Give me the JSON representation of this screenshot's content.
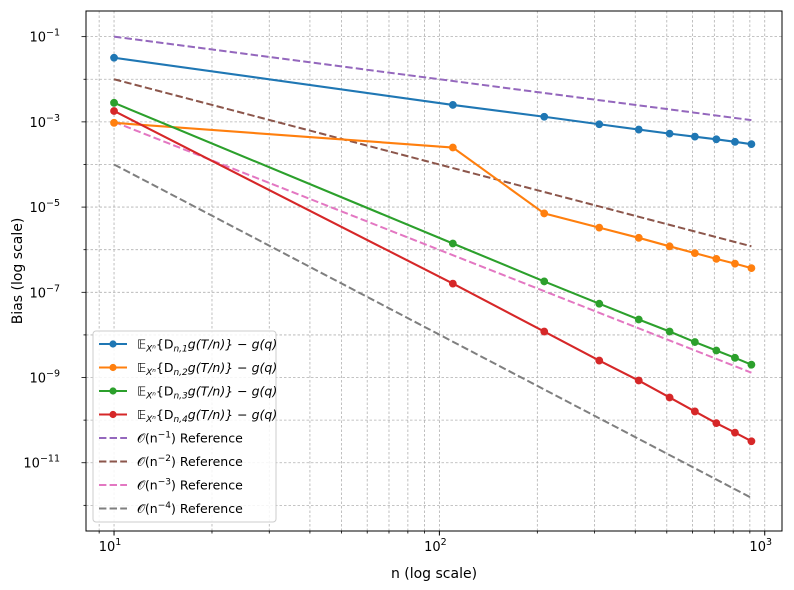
{
  "chart_data": {
    "type": "line",
    "title": "",
    "xlabel": "n (log scale)",
    "ylabel": "Bias (log scale)",
    "xscale": "log",
    "yscale": "log",
    "xlim": [
      8.2,
      1130
    ],
    "ylim": [
      2.5e-13,
      0.4
    ],
    "grid": true,
    "legend_position": "lower-left",
    "x_ticks": [
      {
        "value": 10,
        "label": "10",
        "exp": "1"
      },
      {
        "value": 100,
        "label": "10",
        "exp": "2"
      },
      {
        "value": 1000,
        "label": "10",
        "exp": "3"
      }
    ],
    "y_ticks": [
      {
        "value": 0.1,
        "label": "10",
        "exp": "−1"
      },
      {
        "value": 0.001,
        "label": "10",
        "exp": "−3"
      },
      {
        "value": 1e-05,
        "label": "10",
        "exp": "−5"
      },
      {
        "value": 1e-07,
        "label": "10",
        "exp": "−7"
      },
      {
        "value": 1e-09,
        "label": "10",
        "exp": "−9"
      },
      {
        "value": 1e-11,
        "label": "10",
        "exp": "−11"
      }
    ],
    "x": [
      10,
      110,
      210,
      310,
      410,
      510,
      610,
      710,
      810,
      910
    ],
    "series": [
      {
        "name": "𝔼_{X^n}{D_{n,1} g(T/n)} − g(q)",
        "label_pre": "𝔼",
        "label_sub": "Xⁿ",
        "label_mid": "{D",
        "label_sub2": "n,1",
        "label_post": "g(T/n)} − g(q)",
        "color": "#1f77b4",
        "style": "solid",
        "marker": true,
        "values": [
          0.032,
          0.0025,
          0.00132,
          0.00088,
          0.00066,
          0.00053,
          0.00045,
          0.00039,
          0.00034,
          0.0003
        ]
      },
      {
        "name": "𝔼_{X^n}{D_{n,2} g(T/n)} − g(q)",
        "label_pre": "𝔼",
        "label_sub": "Xⁿ",
        "label_mid": "{D",
        "label_sub2": "n,2",
        "label_post": "g(T/n)} − g(q)",
        "color": "#ff7f0e",
        "style": "solid",
        "marker": true,
        "values": [
          0.00095,
          0.00025,
          7.1e-06,
          3.3e-06,
          1.9e-06,
          1.2e-06,
          8.3e-07,
          6.1e-07,
          4.7e-07,
          3.7e-07
        ]
      },
      {
        "name": "𝔼_{X^n}{D_{n,3} g(T/n)} − g(q)",
        "label_pre": "𝔼",
        "label_sub": "Xⁿ",
        "label_mid": "{D",
        "label_sub2": "n,3",
        "label_post": "g(T/n)} − g(q)",
        "color": "#2ca02c",
        "style": "solid",
        "marker": true,
        "values": [
          0.0028,
          1.4e-06,
          1.8e-07,
          5.4e-08,
          2.3e-08,
          1.2e-08,
          6.8e-09,
          4.3e-09,
          2.9e-09,
          2e-09
        ]
      },
      {
        "name": "𝔼_{X^n}{D_{n,4} g(T/n)} − g(q)",
        "label_pre": "𝔼",
        "label_sub": "Xⁿ",
        "label_mid": "{D",
        "label_sub2": "n,4",
        "label_post": "g(T/n)} − g(q)",
        "color": "#d62728",
        "style": "solid",
        "marker": true,
        "values": [
          0.0018,
          1.6e-07,
          1.2e-08,
          2.5e-09,
          8.5e-10,
          3.4e-10,
          1.6e-10,
          8.5e-11,
          5.1e-11,
          3.2e-11
        ]
      },
      {
        "name": "𝒪(n^{−1}) Reference",
        "label_pre": "𝒪(n",
        "label_sup": "−1",
        "label_post": ") Reference",
        "color": "#9467bd",
        "style": "dashed",
        "marker": false,
        "x": [
          10,
          910
        ],
        "values": [
          0.1,
          0.0011
        ]
      },
      {
        "name": "𝒪(n^{−2}) Reference",
        "label_pre": "𝒪(n",
        "label_sup": "−2",
        "label_post": ") Reference",
        "color": "#8c564b",
        "style": "dashed",
        "marker": false,
        "x": [
          10,
          910
        ],
        "values": [
          0.01,
          1.2e-06
        ]
      },
      {
        "name": "𝒪(n^{−3}) Reference",
        "label_pre": "𝒪(n",
        "label_sup": "−3",
        "label_post": ") Reference",
        "color": "#e377c2",
        "style": "dashed",
        "marker": false,
        "x": [
          10,
          910
        ],
        "values": [
          0.001,
          1.3e-09
        ]
      },
      {
        "name": "𝒪(n^{−4}) Reference",
        "label_pre": "𝒪(n",
        "label_sup": "−4",
        "label_post": ") Reference",
        "color": "#7f7f7f",
        "style": "dashed",
        "marker": false,
        "x": [
          10,
          910
        ],
        "values": [
          0.0001,
          1.5e-12
        ]
      }
    ]
  }
}
